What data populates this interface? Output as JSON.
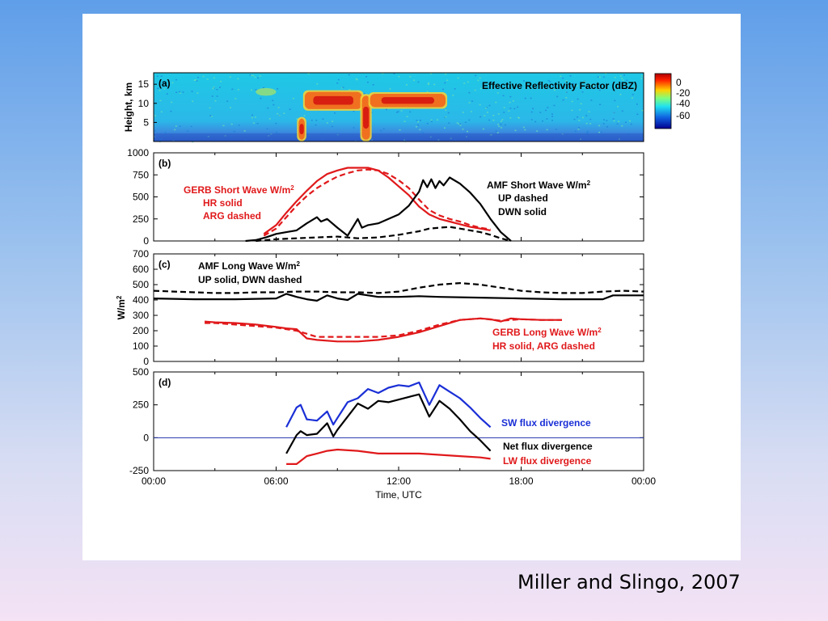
{
  "caption": "Miller and Slingo, 2007",
  "colors": {
    "red": "#e0191b",
    "black": "#000000",
    "blue": "#1a2fd6",
    "zero_line": "#2233aa"
  },
  "chart_data": [
    {
      "id": "a",
      "type": "heatmap",
      "panel_label": "(a)",
      "title": "Effective Reflectivity Factor (dBZ)",
      "ylabel": "Height, km",
      "yticks": [
        5,
        10,
        15
      ],
      "ylim": [
        0,
        18
      ],
      "colorbar": {
        "ticks": [
          "0",
          "-20",
          "-40",
          "-60"
        ],
        "range": [
          0,
          -70
        ]
      },
      "cloud_regions": [
        {
          "t_start": 7.1,
          "t_end": 7.4,
          "h_bottom": 0.5,
          "h_top": 6,
          "intensity": "high"
        },
        {
          "t_start": 7.4,
          "t_end": 10.2,
          "h_bottom": 8.5,
          "h_top": 13,
          "intensity": "high"
        },
        {
          "t_start": 10.2,
          "t_end": 10.6,
          "h_bottom": 0.5,
          "h_top": 12,
          "intensity": "high"
        },
        {
          "t_start": 10.6,
          "t_end": 14.3,
          "h_bottom": 9,
          "h_top": 12.5,
          "intensity": "high"
        },
        {
          "t_start": 5.0,
          "t_end": 6.0,
          "h_bottom": 12,
          "h_top": 14,
          "intensity": "low"
        }
      ]
    },
    {
      "id": "b",
      "type": "line",
      "panel_label": "(b)",
      "ylim": [
        0,
        1000
      ],
      "yticks": [
        0,
        250,
        500,
        750,
        1000
      ],
      "annotations": {
        "gerb": [
          "GERB Short Wave W/m²",
          "HR solid",
          "ARG dashed"
        ],
        "amf": [
          "AMF Short Wave W/m²",
          "UP dashed",
          "DWN solid"
        ]
      },
      "series": [
        {
          "name": "GERB Short Wave HR",
          "color": "red",
          "dash": false,
          "x": [
            5.4,
            6,
            6.5,
            7,
            7.5,
            8,
            8.5,
            9,
            9.5,
            10,
            10.5,
            11,
            11.5,
            12,
            12.5,
            13,
            13.5,
            14,
            14.5,
            15,
            15.5,
            16,
            16.5
          ],
          "y": [
            80,
            180,
            320,
            450,
            570,
            680,
            760,
            800,
            830,
            830,
            830,
            800,
            720,
            620,
            520,
            390,
            300,
            250,
            220,
            190,
            160,
            140,
            120
          ]
        },
        {
          "name": "GERB Short Wave ARG",
          "color": "red",
          "dash": true,
          "x": [
            5.4,
            6,
            6.5,
            7,
            7.5,
            8,
            8.5,
            9,
            9.5,
            10,
            10.5,
            11,
            11.5,
            12,
            12.5,
            13,
            13.5,
            14,
            14.5,
            15,
            15.5,
            16,
            16.5
          ],
          "y": [
            60,
            140,
            270,
            400,
            510,
            600,
            670,
            730,
            770,
            800,
            810,
            800,
            760,
            690,
            600,
            470,
            350,
            290,
            250,
            220,
            180,
            150,
            130
          ]
        },
        {
          "name": "AMF Short Wave DWN",
          "color": "black",
          "dash": false,
          "x": [
            4.5,
            5,
            5.5,
            6,
            6.5,
            7,
            7.5,
            8,
            8.2,
            8.5,
            9,
            9.5,
            10,
            10.2,
            10.5,
            11,
            11.5,
            12,
            12.5,
            13,
            13.2,
            13.4,
            13.6,
            13.8,
            14,
            14.2,
            14.5,
            15,
            15.5,
            16,
            16.5,
            17,
            17.5
          ],
          "y": [
            0,
            10,
            40,
            80,
            100,
            120,
            200,
            270,
            220,
            250,
            150,
            60,
            250,
            150,
            180,
            200,
            250,
            300,
            400,
            560,
            690,
            610,
            700,
            600,
            680,
            630,
            720,
            650,
            550,
            420,
            250,
            100,
            0
          ]
        },
        {
          "name": "AMF Short Wave UP",
          "color": "black",
          "dash": true,
          "x": [
            5,
            6,
            7,
            8,
            9,
            10,
            11,
            12,
            13,
            13.5,
            14,
            14.5,
            15,
            15.5,
            16,
            16.5,
            17,
            17.5
          ],
          "y": [
            0,
            20,
            30,
            40,
            50,
            30,
            40,
            70,
            110,
            140,
            150,
            160,
            140,
            120,
            100,
            70,
            30,
            0
          ]
        }
      ]
    },
    {
      "id": "c",
      "type": "line",
      "panel_label": "(c)",
      "ylabel": "W/m²",
      "ylim": [
        0,
        700
      ],
      "yticks": [
        0,
        100,
        200,
        300,
        400,
        500,
        600,
        700
      ],
      "annotations": {
        "amf": [
          "AMF Long Wave W/m²",
          "UP solid, DWN dashed"
        ],
        "gerb": [
          "GERB Long Wave W/m²",
          "HR solid, ARG dashed"
        ]
      },
      "series": [
        {
          "name": "AMF Long Wave DWN",
          "color": "black",
          "dash": true,
          "x": [
            0,
            1,
            2,
            3,
            4,
            5,
            6,
            7,
            8,
            9,
            10,
            11,
            12,
            13,
            14,
            15,
            16,
            17,
            18,
            19,
            20,
            21,
            22,
            23,
            24
          ],
          "y": [
            460,
            455,
            450,
            445,
            445,
            450,
            450,
            455,
            455,
            450,
            450,
            445,
            455,
            480,
            500,
            510,
            500,
            480,
            460,
            450,
            445,
            445,
            455,
            460,
            455
          ]
        },
        {
          "name": "AMF Long Wave UP",
          "color": "black",
          "dash": false,
          "x": [
            0,
            2,
            4,
            6,
            6.5,
            7,
            7.5,
            8,
            8.5,
            9,
            9.5,
            10,
            11,
            12,
            13,
            14,
            16,
            18,
            20,
            22,
            22.5,
            23,
            24
          ],
          "y": [
            410,
            405,
            405,
            410,
            440,
            420,
            405,
            395,
            430,
            410,
            400,
            440,
            420,
            420,
            425,
            420,
            415,
            410,
            405,
            405,
            430,
            430,
            430
          ]
        },
        {
          "name": "GERB Long Wave HR",
          "color": "red",
          "dash": false,
          "x": [
            2.5,
            3,
            4,
            5,
            6,
            6.5,
            7,
            7.5,
            8,
            9,
            10,
            11,
            12,
            13,
            14,
            15,
            16,
            16.5,
            17,
            17.5,
            18,
            19,
            20
          ],
          "y": [
            260,
            255,
            250,
            240,
            225,
            215,
            210,
            150,
            140,
            130,
            130,
            140,
            160,
            190,
            230,
            270,
            280,
            275,
            260,
            280,
            275,
            270,
            270
          ]
        },
        {
          "name": "GERB Long Wave ARG",
          "color": "red",
          "dash": true,
          "x": [
            2.5,
            3,
            4,
            5,
            6,
            7,
            8,
            9,
            10,
            11,
            12,
            13,
            14,
            15,
            16,
            17,
            18,
            19,
            20
          ],
          "y": [
            250,
            250,
            240,
            230,
            220,
            200,
            160,
            160,
            160,
            160,
            170,
            200,
            240,
            270,
            280,
            265,
            275,
            270,
            270
          ]
        }
      ]
    },
    {
      "id": "d",
      "type": "line",
      "panel_label": "(d)",
      "xlabel": "Time, UTC",
      "ylim": [
        -250,
        500
      ],
      "yticks": [
        -250,
        0,
        250,
        500
      ],
      "xticks": [
        "00:00",
        "06:00",
        "12:00",
        "18:00",
        "00:00"
      ],
      "xlim": [
        0,
        24
      ],
      "annotations": {
        "sw": "SW flux divergence",
        "net": "Net flux divergence",
        "lw": "LW flux divergence"
      },
      "series": [
        {
          "name": "SW flux divergence",
          "color": "blue",
          "dash": false,
          "x": [
            6.5,
            7,
            7.2,
            7.5,
            8,
            8.5,
            8.8,
            9,
            9.5,
            10,
            10.5,
            11,
            11.5,
            12,
            12.5,
            13,
            13.5,
            14,
            14.5,
            15,
            15.5,
            16,
            16.5
          ],
          "y": [
            80,
            230,
            250,
            140,
            130,
            200,
            100,
            150,
            270,
            300,
            370,
            340,
            380,
            400,
            390,
            420,
            250,
            400,
            350,
            300,
            230,
            150,
            80
          ]
        },
        {
          "name": "Net flux divergence",
          "color": "black",
          "dash": false,
          "x": [
            6.5,
            7,
            7.2,
            7.5,
            8,
            8.5,
            8.8,
            9,
            9.5,
            10,
            10.5,
            11,
            11.5,
            12,
            12.5,
            13,
            13.5,
            14,
            14.5,
            15,
            15.5,
            16,
            16.5
          ],
          "y": [
            -120,
            20,
            50,
            20,
            30,
            110,
            10,
            60,
            160,
            260,
            220,
            280,
            270,
            290,
            310,
            330,
            160,
            280,
            220,
            140,
            50,
            -20,
            -100
          ]
        },
        {
          "name": "LW flux divergence",
          "color": "red",
          "dash": false,
          "x": [
            6.5,
            7,
            7.5,
            8,
            8.5,
            9,
            10,
            11,
            12,
            13,
            14,
            15,
            16,
            16.5
          ],
          "y": [
            -200,
            -200,
            -140,
            -120,
            -100,
            -90,
            -100,
            -120,
            -120,
            -120,
            -130,
            -140,
            -150,
            -160
          ]
        }
      ]
    }
  ]
}
